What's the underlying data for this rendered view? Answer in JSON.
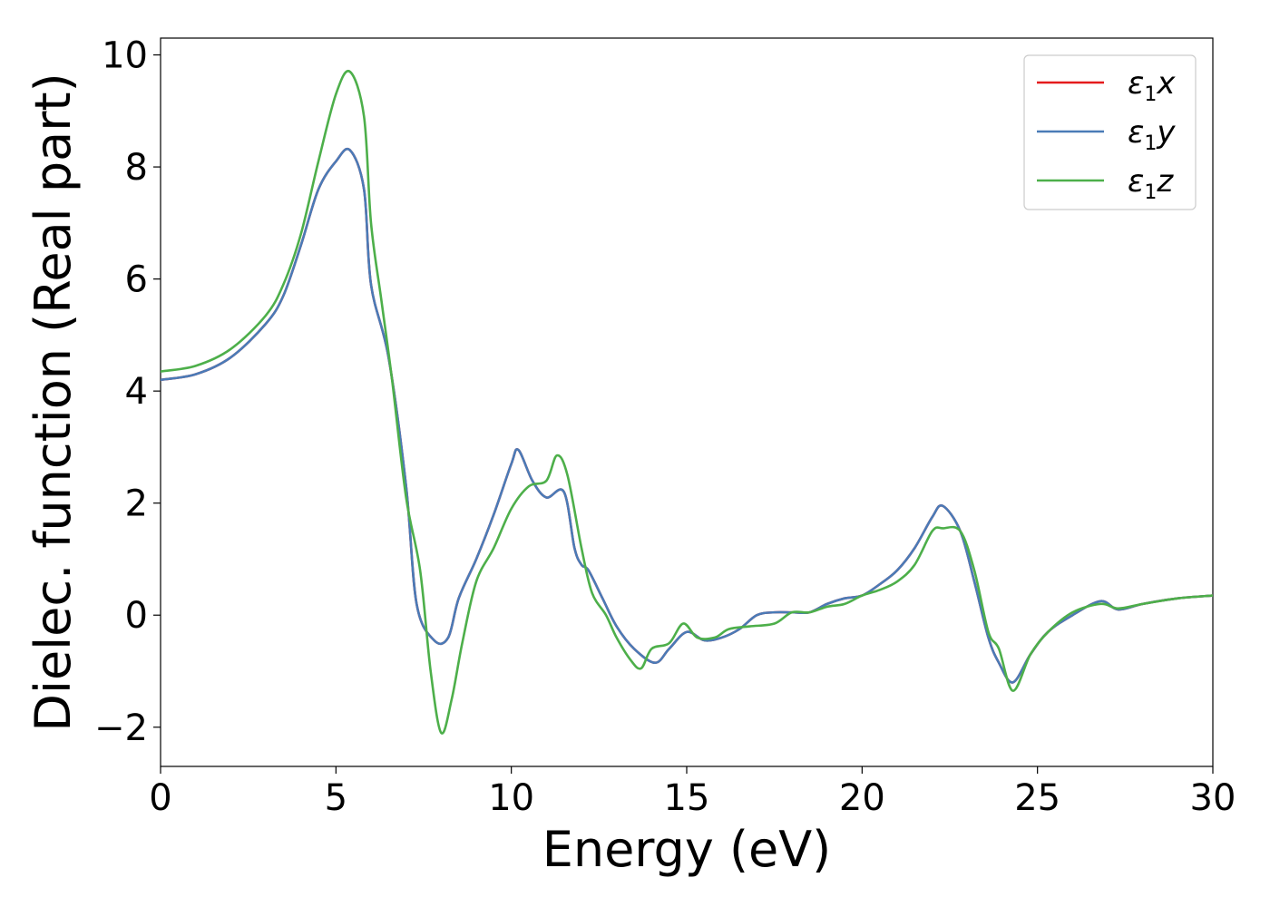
{
  "chart_data": {
    "type": "line",
    "xlabel": "Energy (eV)",
    "ylabel": "Dielec. function (Real part)",
    "xlim": [
      0,
      30
    ],
    "ylim": [
      -2.7,
      10.3
    ],
    "xticks": [
      0,
      5,
      10,
      15,
      20,
      25,
      30
    ],
    "yticks": [
      -2,
      0,
      2,
      4,
      6,
      8,
      10
    ],
    "ytick_labels": [
      "−2",
      "0",
      "2",
      "4",
      "6",
      "8",
      "10"
    ],
    "grid": false,
    "legend_position": "top-right",
    "series": [
      {
        "name": "ε1x",
        "legend_base": "ε",
        "legend_sub": "1",
        "legend_var": "x",
        "color": "#e41a1c",
        "x": [
          0,
          1,
          2,
          3,
          3.5,
          4,
          4.5,
          5,
          5.4,
          5.8,
          6,
          6.5,
          7,
          7.3,
          7.8,
          8.2,
          8.5,
          9,
          9.5,
          10,
          10.2,
          10.6,
          11,
          11.5,
          11.8,
          12,
          12.2,
          12.6,
          13,
          13.5,
          14.1,
          14.5,
          15,
          15.5,
          16,
          16.5,
          17,
          17.5,
          18,
          18.5,
          19,
          19.5,
          20,
          20.5,
          21,
          21.5,
          22,
          22.3,
          22.8,
          23.2,
          23.6,
          23.9,
          24.3,
          24.8,
          25.3,
          26,
          26.8,
          27.3,
          28,
          29,
          30
        ],
        "y": [
          4.2,
          4.3,
          4.6,
          5.2,
          5.7,
          6.6,
          7.6,
          8.1,
          8.3,
          7.6,
          5.9,
          4.6,
          2.3,
          0.2,
          -0.45,
          -0.4,
          0.3,
          1.0,
          1.8,
          2.7,
          2.95,
          2.4,
          2.1,
          2.2,
          1.2,
          0.9,
          0.8,
          0.3,
          -0.2,
          -0.6,
          -0.85,
          -0.6,
          -0.3,
          -0.45,
          -0.4,
          -0.25,
          0.0,
          0.05,
          0.05,
          0.05,
          0.2,
          0.3,
          0.35,
          0.55,
          0.8,
          1.2,
          1.75,
          1.95,
          1.5,
          0.6,
          -0.4,
          -0.85,
          -1.2,
          -0.7,
          -0.3,
          0.0,
          0.25,
          0.1,
          0.2,
          0.3,
          0.35
        ]
      },
      {
        "name": "ε1y",
        "legend_base": "ε",
        "legend_sub": "1",
        "legend_var": "y",
        "color": "#4a7bb7",
        "x": [
          0,
          1,
          2,
          3,
          3.5,
          4,
          4.5,
          5,
          5.4,
          5.8,
          6,
          6.5,
          7,
          7.3,
          7.8,
          8.2,
          8.5,
          9,
          9.5,
          10,
          10.2,
          10.6,
          11,
          11.5,
          11.8,
          12,
          12.2,
          12.6,
          13,
          13.5,
          14.1,
          14.5,
          15,
          15.5,
          16,
          16.5,
          17,
          17.5,
          18,
          18.5,
          19,
          19.5,
          20,
          20.5,
          21,
          21.5,
          22,
          22.3,
          22.8,
          23.2,
          23.6,
          23.9,
          24.3,
          24.8,
          25.3,
          26,
          26.8,
          27.3,
          28,
          29,
          30
        ],
        "y": [
          4.2,
          4.3,
          4.6,
          5.2,
          5.7,
          6.6,
          7.6,
          8.1,
          8.3,
          7.6,
          5.9,
          4.6,
          2.3,
          0.2,
          -0.45,
          -0.4,
          0.3,
          1.0,
          1.8,
          2.7,
          2.95,
          2.4,
          2.1,
          2.2,
          1.2,
          0.9,
          0.8,
          0.3,
          -0.2,
          -0.6,
          -0.85,
          -0.6,
          -0.3,
          -0.45,
          -0.4,
          -0.25,
          0.0,
          0.05,
          0.05,
          0.05,
          0.2,
          0.3,
          0.35,
          0.55,
          0.8,
          1.2,
          1.75,
          1.95,
          1.5,
          0.6,
          -0.4,
          -0.85,
          -1.2,
          -0.7,
          -0.3,
          0.0,
          0.25,
          0.1,
          0.2,
          0.3,
          0.35
        ]
      },
      {
        "name": "ε1z",
        "legend_base": "ε",
        "legend_sub": "1",
        "legend_var": "z",
        "color": "#4daf4a",
        "x": [
          0,
          1,
          2,
          3,
          3.5,
          4,
          4.5,
          5,
          5.4,
          5.8,
          6,
          6.3,
          6.6,
          7,
          7.4,
          7.7,
          8,
          8.3,
          8.6,
          9,
          9.5,
          10,
          10.5,
          11,
          11.3,
          11.6,
          12,
          12.3,
          12.7,
          13,
          13.4,
          13.7,
          14,
          14.5,
          14.9,
          15.3,
          15.8,
          16.2,
          16.8,
          17.5,
          18,
          18.5,
          19,
          19.5,
          20,
          20.5,
          21,
          21.5,
          22,
          22.3,
          22.8,
          23.2,
          23.6,
          23.9,
          24.3,
          24.8,
          25.3,
          26,
          26.8,
          27.3,
          28,
          29,
          30
        ],
        "y": [
          4.35,
          4.45,
          4.75,
          5.35,
          5.9,
          6.8,
          8.1,
          9.3,
          9.7,
          8.9,
          7.0,
          5.6,
          4.2,
          2.1,
          0.8,
          -1.0,
          -2.1,
          -1.5,
          -0.5,
          0.6,
          1.2,
          1.9,
          2.3,
          2.4,
          2.85,
          2.5,
          1.2,
          0.4,
          0.0,
          -0.4,
          -0.8,
          -0.95,
          -0.6,
          -0.5,
          -0.15,
          -0.4,
          -0.4,
          -0.25,
          -0.2,
          -0.15,
          0.05,
          0.05,
          0.15,
          0.2,
          0.35,
          0.45,
          0.6,
          0.9,
          1.5,
          1.55,
          1.5,
          0.8,
          -0.3,
          -0.6,
          -1.35,
          -0.7,
          -0.3,
          0.05,
          0.2,
          0.12,
          0.2,
          0.3,
          0.35
        ]
      }
    ]
  }
}
